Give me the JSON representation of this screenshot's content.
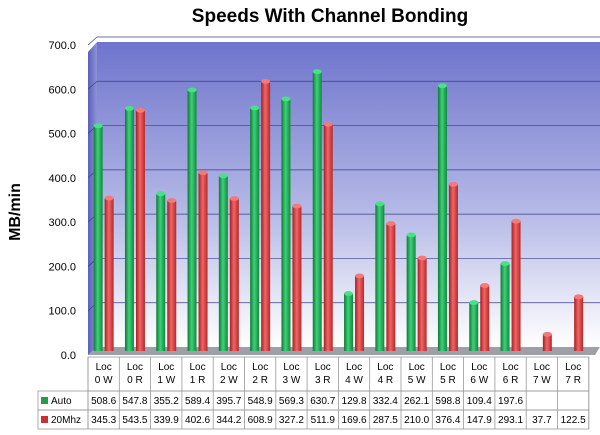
{
  "chart_data": {
    "type": "bar",
    "title": "Speeds With Channel Bonding",
    "ylabel": "MB/min",
    "xlabel": "",
    "ylim": [
      0,
      700
    ],
    "yticks": [
      "0.0",
      "100.0",
      "200.0",
      "300.0",
      "400.0",
      "500.0",
      "600.0",
      "700.0"
    ],
    "grid": true,
    "legend": "bottom-data-table",
    "categories": [
      [
        "Loc",
        "0 W"
      ],
      [
        "Loc",
        "0 R"
      ],
      [
        "Loc",
        "1 W"
      ],
      [
        "Loc",
        "1 R"
      ],
      [
        "Loc",
        "2 W"
      ],
      [
        "Loc",
        "2 R"
      ],
      [
        "Loc",
        "3 W"
      ],
      [
        "Loc",
        "3 R"
      ],
      [
        "Loc",
        "4 W"
      ],
      [
        "Loc",
        "4 R"
      ],
      [
        "Loc",
        "5 W"
      ],
      [
        "Loc",
        "5 R"
      ],
      [
        "Loc",
        "6 W"
      ],
      [
        "Loc",
        "6 R"
      ],
      [
        "Loc",
        "7 W"
      ],
      [
        "Loc",
        "7 R"
      ]
    ],
    "series": [
      {
        "name": "Auto",
        "color": "#1f9e4a",
        "values": [
          508.6,
          547.8,
          355.2,
          589.4,
          395.7,
          548.9,
          569.3,
          630.7,
          129.8,
          332.4,
          262.1,
          598.8,
          109.4,
          197.6,
          null,
          null
        ],
        "labels": [
          "508.6",
          "547.8",
          "355.2",
          "589.4",
          "395.7",
          "548.9",
          "569.3",
          "630.7",
          "129.8",
          "332.4",
          "262.1",
          "598.8",
          "109.4",
          "197.6",
          "",
          ""
        ]
      },
      {
        "name": "20Mhz",
        "color": "#cc2f2f",
        "values": [
          345.3,
          543.5,
          339.9,
          402.6,
          344.2,
          608.9,
          327.2,
          511.9,
          169.6,
          287.5,
          210.0,
          376.4,
          147.9,
          293.1,
          37.7,
          122.5
        ],
        "labels": [
          "345.3",
          "543.5",
          "339.9",
          "402.6",
          "344.2",
          "608.9",
          "327.2",
          "511.9",
          "169.6",
          "287.5",
          "210.0",
          "376.4",
          "147.9",
          "293.1",
          "37.7",
          "122.5"
        ]
      }
    ]
  }
}
